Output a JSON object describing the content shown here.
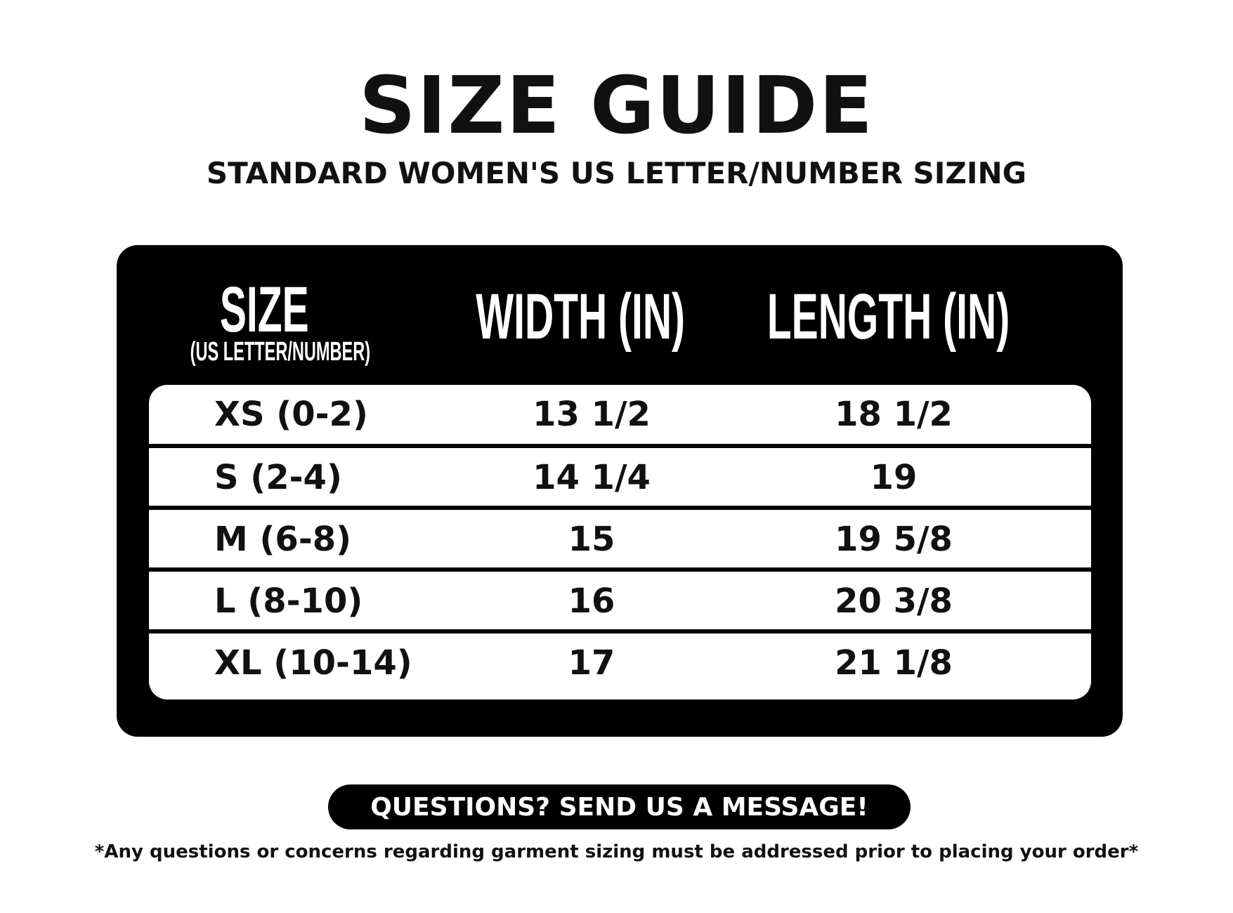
{
  "title": "SIZE GUIDE",
  "subtitle": "STANDARD WOMEN'S US LETTER/NUMBER SIZING",
  "table": {
    "headers": {
      "size": "SIZE",
      "size_sub": "(US LETTER/NUMBER)",
      "width": "WIDTH (IN)",
      "length": "LENGTH (IN)"
    },
    "rows": [
      {
        "size": "XS (0-2)",
        "width": "13 1/2",
        "length": "18 1/2"
      },
      {
        "size": "S (2-4)",
        "width": "14 1/4",
        "length": "19"
      },
      {
        "size": "M (6-8)",
        "width": "15",
        "length": "19 5/8"
      },
      {
        "size": "L (8-10)",
        "width": "16",
        "length": "20 3/8"
      },
      {
        "size": "XL (10-14)",
        "width": "17",
        "length": "21 1/8"
      }
    ]
  },
  "cta_button": "QUESTIONS? SEND US A MESSAGE!",
  "footnote": "*Any questions or concerns regarding garment sizing must be addressed prior to placing your order*"
}
